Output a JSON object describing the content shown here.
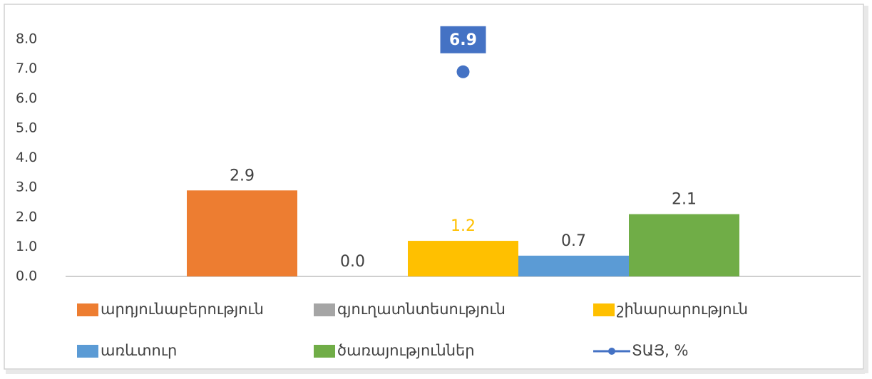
{
  "chart_data": {
    "type": "bar",
    "categories": [
      null
    ],
    "series": [
      {
        "name": "արդյունաբերություն",
        "color": "#ed7d31",
        "values": [
          2.9
        ]
      },
      {
        "name": "գյուղատնտեսություն",
        "color": "#a5a5a5",
        "values": [
          0
        ],
        "value_labels": [
          "0.0"
        ]
      },
      {
        "name": "շինարարություն",
        "color": "#ffc000",
        "values": [
          1.2
        ],
        "label_color": "#ffc000"
      },
      {
        "name": "առևտուր",
        "color": "#5b9bd5",
        "values": [
          0.7
        ]
      },
      {
        "name": "ծառայություններ",
        "color": "#70ad47",
        "values": [
          2.1
        ]
      },
      {
        "name": "ՏԱՅ, %",
        "color": "#4472c4",
        "values": [
          6.9
        ],
        "type": "scatter"
      }
    ],
    "ylim": [
      0,
      8
    ],
    "yticks": [
      {
        "value": 0,
        "label": "0.0"
      },
      {
        "value": 1,
        "label": "1.0"
      },
      {
        "value": 2,
        "label": "2.0"
      },
      {
        "value": 3,
        "label": "3.0"
      },
      {
        "value": 4,
        "label": "4.0"
      },
      {
        "value": 5,
        "label": "5.0"
      },
      {
        "value": 6,
        "label": "6.0"
      },
      {
        "value": 7,
        "label": "7.0"
      },
      {
        "value": 8,
        "label": "8.0"
      }
    ],
    "grid": false
  }
}
